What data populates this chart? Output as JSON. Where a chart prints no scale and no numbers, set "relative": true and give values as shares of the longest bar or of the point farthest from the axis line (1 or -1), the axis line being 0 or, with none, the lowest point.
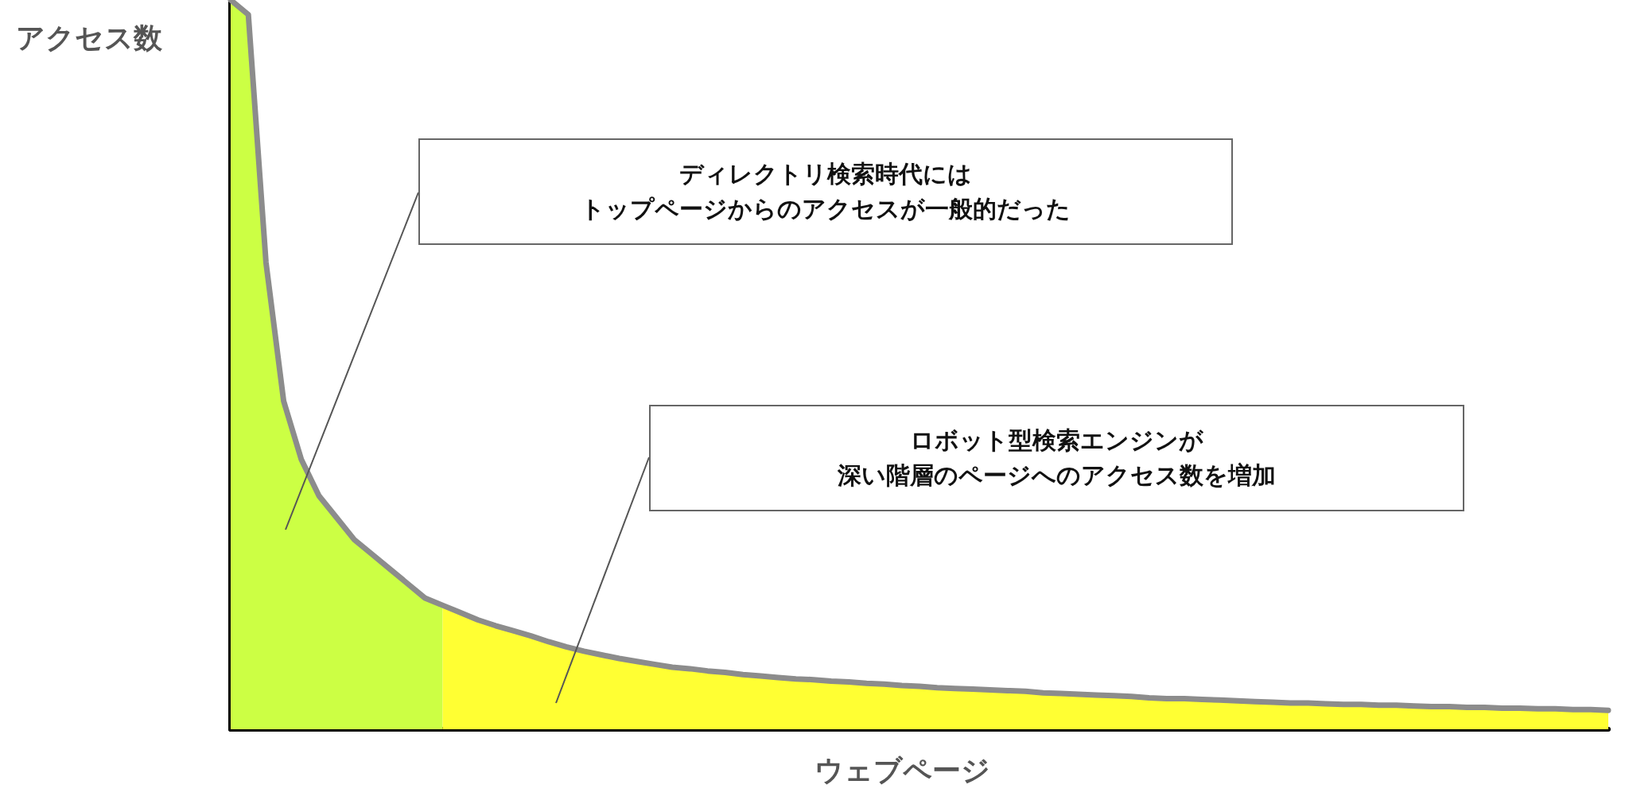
{
  "chart_data": {
    "type": "area",
    "relative": true,
    "xlabel": "ウェブページ",
    "ylabel": "アクセス数",
    "marker": "none",
    "categories": [
      null,
      null,
      null,
      null,
      null,
      null,
      null,
      null,
      null,
      null,
      null,
      null,
      null,
      null,
      null,
      null,
      null,
      null,
      null,
      null,
      null,
      null,
      null,
      null,
      null,
      null,
      null,
      null,
      null,
      null,
      null,
      null,
      null,
      null,
      null,
      null,
      null,
      null,
      null,
      null,
      null,
      null,
      null,
      null,
      null,
      null,
      null,
      null,
      null,
      null,
      null,
      null,
      null,
      null,
      null,
      null,
      null,
      null,
      null,
      null,
      null,
      null,
      null,
      null,
      null,
      null,
      null,
      null,
      null,
      null,
      null,
      null,
      null,
      null,
      null,
      null,
      null,
      null,
      null
    ],
    "series": [
      {
        "color": "#ccff44",
        "values": [
          1.0,
          0.98,
          0.64,
          0.45,
          0.37,
          0.32,
          0.29,
          0.26,
          0.24,
          0.22,
          0.2,
          0.18,
          0.17,
          null,
          null,
          null,
          null,
          null,
          null,
          null,
          null,
          null,
          null,
          null,
          null,
          null,
          null,
          null,
          null,
          null,
          null,
          null,
          null,
          null,
          null,
          null,
          null,
          null,
          null,
          null,
          null,
          null,
          null,
          null,
          null,
          null,
          null,
          null,
          null,
          null,
          null,
          null,
          null,
          null,
          null,
          null,
          null,
          null,
          null,
          null,
          null,
          null,
          null,
          null,
          null,
          null,
          null,
          null,
          null,
          null,
          null,
          null,
          null,
          null,
          null,
          null,
          null,
          null,
          null
        ]
      },
      {
        "color": "#ffff33",
        "values": [
          null,
          null,
          null,
          null,
          null,
          null,
          null,
          null,
          null,
          null,
          null,
          null,
          0.17,
          0.16,
          0.15,
          0.142,
          0.135,
          0.128,
          0.12,
          0.113,
          0.107,
          0.102,
          0.097,
          0.093,
          0.089,
          0.085,
          0.083,
          0.08,
          0.078,
          0.075,
          0.073,
          0.071,
          0.069,
          0.068,
          0.066,
          0.065,
          0.063,
          0.062,
          0.06,
          0.059,
          0.057,
          0.056,
          0.055,
          0.054,
          0.053,
          0.052,
          0.05,
          0.049,
          0.048,
          0.047,
          0.046,
          0.045,
          0.043,
          0.042,
          0.042,
          0.041,
          0.04,
          0.039,
          0.038,
          0.037,
          0.036,
          0.036,
          0.035,
          0.034,
          0.034,
          0.033,
          0.033,
          0.032,
          0.031,
          0.031,
          0.03,
          0.03,
          0.029,
          0.029,
          0.028,
          0.028,
          0.027,
          0.027,
          0.026
        ]
      },
      {
        "type": "line",
        "color": "#8c8c8c",
        "values": [
          1.0,
          0.98,
          0.64,
          0.45,
          0.37,
          0.32,
          0.29,
          0.26,
          0.24,
          0.22,
          0.2,
          0.18,
          0.17,
          0.16,
          0.15,
          0.142,
          0.135,
          0.128,
          0.12,
          0.113,
          0.107,
          0.102,
          0.097,
          0.093,
          0.089,
          0.085,
          0.083,
          0.08,
          0.078,
          0.075,
          0.073,
          0.071,
          0.069,
          0.068,
          0.066,
          0.065,
          0.063,
          0.062,
          0.06,
          0.059,
          0.057,
          0.056,
          0.055,
          0.054,
          0.053,
          0.052,
          0.05,
          0.049,
          0.048,
          0.047,
          0.046,
          0.045,
          0.043,
          0.042,
          0.042,
          0.041,
          0.04,
          0.039,
          0.038,
          0.037,
          0.036,
          0.036,
          0.035,
          0.034,
          0.034,
          0.033,
          0.033,
          0.032,
          0.031,
          0.031,
          0.03,
          0.03,
          0.029,
          0.029,
          0.028,
          0.028,
          0.027,
          0.027,
          0.026
        ]
      }
    ],
    "annotations": [
      "ディレクトリ検索時代には",
      "トップページからのアクセスが一般的だった",
      "ロボット型検索エンジンが",
      "深い階層のページへのアクセス数を増加"
    ]
  }
}
